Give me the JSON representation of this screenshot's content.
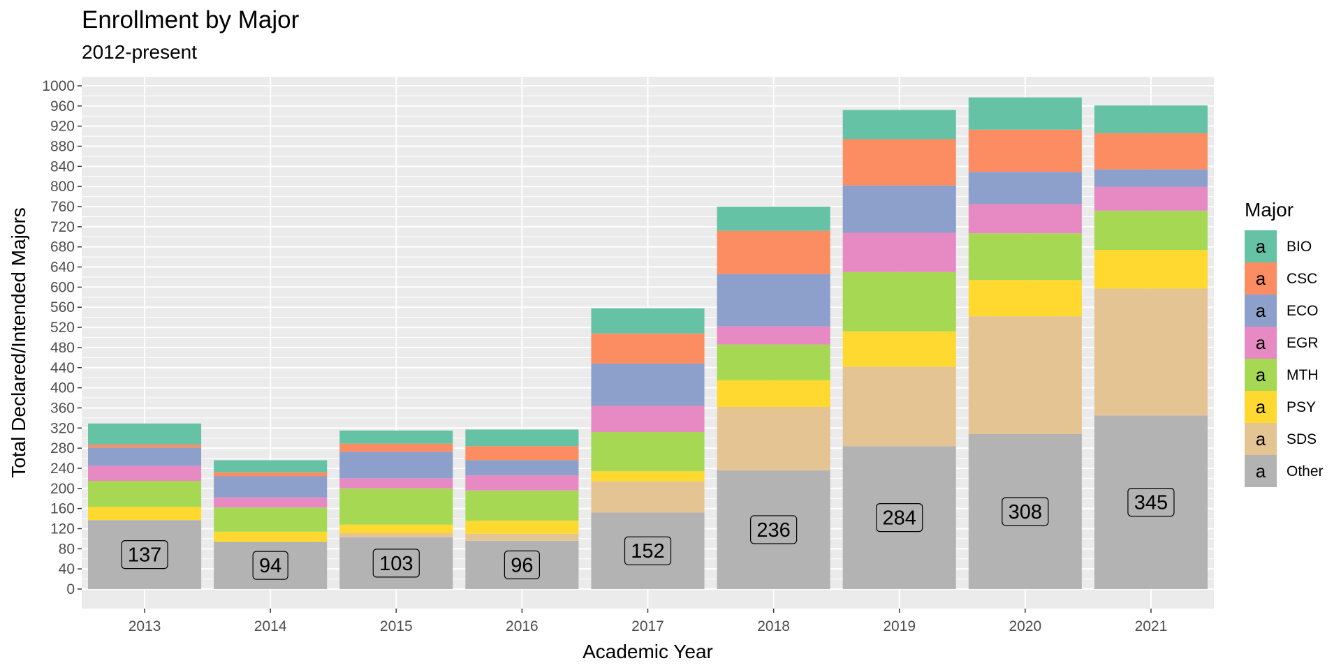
{
  "chart_data": {
    "type": "bar",
    "stacked": true,
    "title": "Enrollment by Major",
    "subtitle": "2012-present",
    "xlabel": "Academic Year",
    "ylabel": "Total Declared/Intended Majors",
    "categories": [
      "2013",
      "2014",
      "2015",
      "2016",
      "2017",
      "2018",
      "2019",
      "2020",
      "2021"
    ],
    "ylim": [
      0,
      1000
    ],
    "yticks": [
      0,
      40,
      80,
      120,
      160,
      200,
      240,
      280,
      320,
      360,
      400,
      440,
      480,
      520,
      560,
      600,
      640,
      680,
      720,
      760,
      800,
      840,
      880,
      920,
      960,
      1000
    ],
    "grid": true,
    "legend": {
      "title": "Major",
      "position": "right",
      "key_glyph": "a"
    },
    "series": [
      {
        "name": "Other",
        "color": "#B3B3B3",
        "values": [
          137,
          94,
          103,
          96,
          152,
          236,
          284,
          308,
          345
        ]
      },
      {
        "name": "SDS",
        "color": "#E5C494",
        "values": [
          0,
          0,
          8,
          14,
          62,
          126,
          158,
          234,
          252
        ]
      },
      {
        "name": "PSY",
        "color": "#FFD92F",
        "values": [
          26,
          20,
          17,
          26,
          20,
          53,
          70,
          72,
          77
        ]
      },
      {
        "name": "MTH",
        "color": "#A6D854",
        "values": [
          52,
          48,
          72,
          60,
          78,
          71,
          118,
          93,
          78
        ]
      },
      {
        "name": "EGR",
        "color": "#E78AC3",
        "values": [
          30,
          20,
          20,
          30,
          52,
          36,
          78,
          58,
          47
        ]
      },
      {
        "name": "ECO",
        "color": "#8DA0CB",
        "values": [
          36,
          42,
          53,
          30,
          84,
          104,
          94,
          64,
          35
        ]
      },
      {
        "name": "CSC",
        "color": "#FC8D62",
        "values": [
          6,
          8,
          16,
          28,
          60,
          86,
          92,
          84,
          72
        ]
      },
      {
        "name": "BIO",
        "color": "#66C2A5",
        "values": [
          42,
          24,
          26,
          33,
          50,
          48,
          58,
          64,
          55
        ]
      }
    ],
    "data_labels": [
      {
        "series": "Other",
        "values": [
          137,
          94,
          103,
          96,
          152,
          236,
          284,
          308,
          345
        ]
      }
    ]
  }
}
